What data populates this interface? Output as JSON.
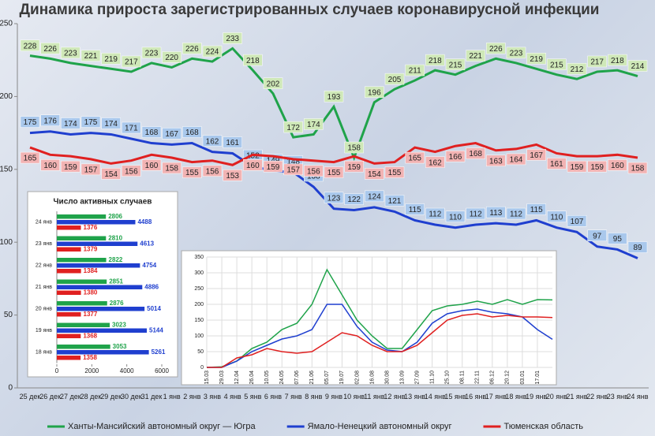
{
  "chart_data": [
    {
      "type": "line",
      "title": "Динамика прироста зарегистрированных случаев коронавирусной инфекции",
      "categories": [
        "25 дек",
        "26 дек",
        "27 дек",
        "28 дек",
        "29 дек",
        "30 дек",
        "31 дек",
        "1 янв",
        "2 янв",
        "3 янв",
        "4 янв",
        "5 янв",
        "6 янв",
        "7 янв",
        "8 янв",
        "9 янв",
        "10 янв",
        "11 янв",
        "12 янв",
        "13 янв",
        "14 янв",
        "15 янв",
        "16 янв",
        "17 янв",
        "18 янв",
        "19 янв",
        "20 янв",
        "21 янв",
        "22 янв",
        "23 янв",
        "24 янв"
      ],
      "series": [
        {
          "name": "Ханты-Мансийский автономный округ — Югра",
          "color": "#1fa34a",
          "values": [
            228,
            226,
            223,
            221,
            219,
            217,
            223,
            220,
            226,
            224,
            233,
            218,
            202,
            172,
            174,
            193,
            158,
            196,
            205,
            211,
            218,
            215,
            221,
            226,
            223,
            219,
            215,
            212,
            217,
            218,
            214
          ]
        },
        {
          "name": "Ямало-Ненецкий автономный округ",
          "color": "#1f3fcf",
          "values": [
            175,
            176,
            174,
            175,
            174,
            171,
            168,
            167,
            168,
            162,
            161,
            152,
            149,
            148,
            138,
            123,
            122,
            124,
            121,
            115,
            112,
            110,
            112,
            113,
            112,
            115,
            110,
            107,
            97,
            95,
            89
          ]
        },
        {
          "name": "Тюменская область",
          "color": "#e02020",
          "values": [
            165,
            160,
            159,
            157,
            154,
            156,
            160,
            158,
            155,
            156,
            153,
            160,
            159,
            157,
            156,
            155,
            159,
            154,
            155,
            165,
            162,
            166,
            168,
            163,
            164,
            167,
            161,
            159,
            159,
            160,
            158
          ]
        }
      ],
      "ylim": [
        0,
        250
      ],
      "yticks": [
        0,
        50,
        100,
        150,
        200,
        250
      ]
    },
    {
      "type": "hbar",
      "title": "Число активных случаев",
      "categories": [
        "24 янв",
        "23 янв",
        "22 янв",
        "21 янв",
        "20 янв",
        "19 янв",
        "18 янв"
      ],
      "series": [
        {
          "color": "#1fa34a",
          "values": [
            2806,
            2810,
            2822,
            2851,
            2876,
            3023,
            3053
          ]
        },
        {
          "color": "#1f3fcf",
          "values": [
            4488,
            4613,
            4754,
            4886,
            5014,
            5144,
            5261
          ]
        },
        {
          "color": "#e02020",
          "values": [
            1376,
            1379,
            1384,
            1380,
            1377,
            1368,
            1358
          ]
        }
      ],
      "xlim": [
        0,
        6000
      ],
      "xticks": [
        0,
        2000,
        4000,
        6000
      ]
    },
    {
      "type": "line",
      "categories": [
        "15.03",
        "29.03",
        "12.04",
        "26.04",
        "10.05",
        "24.05",
        "07.06",
        "21.06",
        "05.07",
        "19.07",
        "02.08",
        "16.08",
        "30.08",
        "13.09",
        "27.09",
        "11.10",
        "25.10",
        "08.11",
        "22.11",
        "06.12",
        "20.12",
        "03.01",
        "17.01",
        null
      ],
      "series": [
        {
          "color": "#1fa34a",
          "values": [
            0,
            2,
            20,
            60,
            80,
            120,
            140,
            200,
            310,
            230,
            150,
            100,
            60,
            60,
            120,
            180,
            195,
            200,
            210,
            200,
            215,
            200,
            215,
            214
          ]
        },
        {
          "color": "#1f3fcf",
          "values": [
            0,
            0,
            20,
            50,
            70,
            90,
            100,
            120,
            200,
            200,
            130,
            80,
            55,
            50,
            80,
            140,
            170,
            180,
            185,
            175,
            170,
            160,
            120,
            89
          ]
        },
        {
          "color": "#e02020",
          "values": [
            0,
            0,
            30,
            40,
            60,
            50,
            45,
            50,
            80,
            110,
            100,
            70,
            50,
            50,
            70,
            110,
            150,
            165,
            170,
            160,
            165,
            160,
            160,
            158
          ]
        }
      ],
      "ylim": [
        0,
        350
      ],
      "yticks": [
        0,
        50,
        100,
        150,
        200,
        250,
        300,
        350
      ]
    }
  ]
}
